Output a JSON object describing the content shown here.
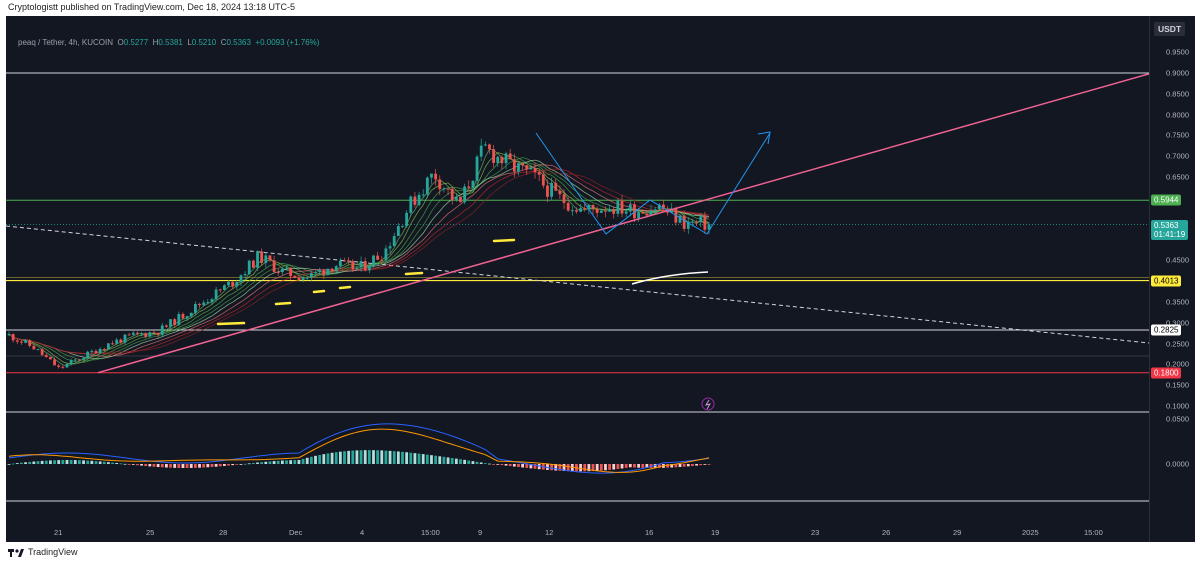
{
  "header": {
    "publisher": "Cryptologistt published on TradingView.com, Dec 18, 2024 13:18 UTC-5"
  },
  "legend": {
    "symbol": "peaq / Tether, 4h, KUCOIN",
    "o_label": "O",
    "o": "0.5277",
    "h_label": "H",
    "h": "0.5381",
    "l_label": "L",
    "l": "0.5210",
    "c_label": "C",
    "c": "0.5363",
    "change": "+0.0093 (+1.76%)"
  },
  "price_scale": {
    "currency": "USDT",
    "ticks": [
      "0.9500",
      "0.9000",
      "0.8500",
      "0.8000",
      "0.7500",
      "0.7000",
      "0.6500",
      "0.4500",
      "0.3500",
      "0.3000",
      "0.2500",
      "0.2000",
      "0.1500",
      "0.1000"
    ],
    "macd_ticks": [
      "0.0500",
      "0.0000"
    ],
    "tags": [
      {
        "label": "0.5944",
        "color": "#4caf50",
        "text_color": "#ffffff"
      },
      {
        "label": "0.5363",
        "sub": "01:41:19",
        "color": "#26a69a",
        "text_color": "#ffffff"
      },
      {
        "label": "0.4013",
        "color": "#ffeb3b",
        "text_color": "#000000"
      },
      {
        "label": "0.2825",
        "color": "#ffffff",
        "text_color": "#000000"
      },
      {
        "label": "0.1800",
        "color": "#f23645",
        "text_color": "#ffffff"
      }
    ]
  },
  "time_axis": [
    "21",
    "25",
    "28",
    "Dec",
    "4",
    "15:00",
    "9",
    "12",
    "16",
    "19",
    "23",
    "26",
    "29",
    "2025",
    "15:00"
  ],
  "footer": {
    "brand": "TradingView"
  },
  "colors": {
    "up": "#26a69a",
    "down": "#ef5350",
    "trendline": "#f06292",
    "projection": "#2196f3",
    "macd": "#2962ff",
    "signal": "#ff9800"
  },
  "chart_data": {
    "type": "candlestick",
    "symbol": "peaq / Tether",
    "interval": "4h",
    "exchange": "KUCOIN",
    "last_close": 0.5363,
    "horizontal_levels": [
      0.5944,
      0.4013,
      0.2825,
      0.18
    ],
    "ylim": [
      0.08,
      0.98
    ],
    "daily_closes": [
      {
        "date": "Nov 20",
        "close": 0.27
      },
      {
        "date": "Nov 21",
        "close": 0.24
      },
      {
        "date": "Nov 22",
        "close": 0.19
      },
      {
        "date": "Nov 23",
        "close": 0.22
      },
      {
        "date": "Nov 24",
        "close": 0.25
      },
      {
        "date": "Nov 25",
        "close": 0.27
      },
      {
        "date": "Nov 26",
        "close": 0.28
      },
      {
        "date": "Nov 27",
        "close": 0.32
      },
      {
        "date": "Nov 28",
        "close": 0.36
      },
      {
        "date": "Nov 29",
        "close": 0.4
      },
      {
        "date": "Nov 30",
        "close": 0.46
      },
      {
        "date": "Dec 1",
        "close": 0.42
      },
      {
        "date": "Dec 2",
        "close": 0.41
      },
      {
        "date": "Dec 3",
        "close": 0.44
      },
      {
        "date": "Dec 4",
        "close": 0.43
      },
      {
        "date": "Dec 5",
        "close": 0.47
      },
      {
        "date": "Dec 6",
        "close": 0.58
      },
      {
        "date": "Dec 7",
        "close": 0.66
      },
      {
        "date": "Dec 8",
        "close": 0.58
      },
      {
        "date": "Dec 9",
        "close": 0.72
      },
      {
        "date": "Dec 10",
        "close": 0.68
      },
      {
        "date": "Dec 11",
        "close": 0.65
      },
      {
        "date": "Dec 12",
        "close": 0.6
      },
      {
        "date": "Dec 13",
        "close": 0.57
      },
      {
        "date": "Dec 14",
        "close": 0.58
      },
      {
        "date": "Dec 15",
        "close": 0.57
      },
      {
        "date": "Dec 16",
        "close": 0.58
      },
      {
        "date": "Dec 17",
        "close": 0.54
      },
      {
        "date": "Dec 18",
        "close": 0.5363
      }
    ],
    "projection_target": 0.775
  }
}
